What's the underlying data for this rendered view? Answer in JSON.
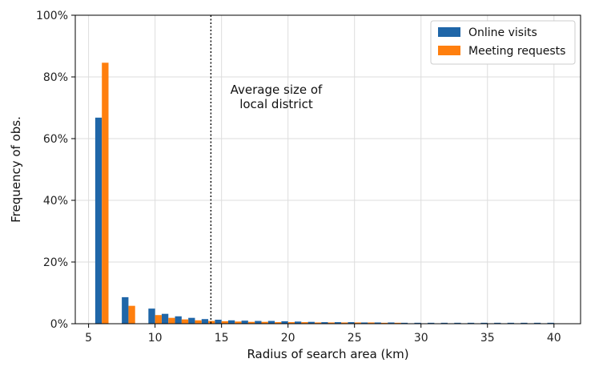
{
  "chart_data": {
    "type": "bar",
    "xlabel": "Radius of search area (km)",
    "ylabel": "Frequency of obs.",
    "xlim": [
      4,
      42
    ],
    "ylim": [
      0,
      100
    ],
    "x_ticks": [
      5,
      10,
      15,
      20,
      25,
      30,
      35,
      40
    ],
    "y_ticks": [
      0,
      20,
      40,
      60,
      80,
      100
    ],
    "y_tick_labels": [
      "0%",
      "20%",
      "40%",
      "60%",
      "80%",
      "100%"
    ],
    "grid": true,
    "legend_position": "top-right",
    "bin_width": 1,
    "series": [
      {
        "name": "Online visits",
        "color": "#1f66a8",
        "x": [
          5,
          6,
          7,
          8,
          9,
          10,
          11,
          12,
          13,
          14,
          15,
          16,
          17,
          18,
          19,
          20,
          21,
          22,
          23,
          24,
          25,
          26,
          27,
          28,
          29,
          30,
          31,
          32,
          33,
          34,
          35,
          36,
          37,
          38,
          39,
          40
        ],
        "values": [
          0,
          66.8,
          0,
          8.6,
          0,
          4.9,
          3.2,
          2.4,
          1.9,
          1.5,
          1.3,
          1.1,
          1.0,
          0.9,
          0.9,
          0.8,
          0.7,
          0.6,
          0.5,
          0.5,
          0.5,
          0.4,
          0.4,
          0.4,
          0.3,
          0.3,
          0.3,
          0.3,
          0.3,
          0.3,
          0.3,
          0.3,
          0.3,
          0.3,
          0.3,
          0.3
        ]
      },
      {
        "name": "Meeting requests",
        "color": "#ff7f0e",
        "x": [
          5,
          6,
          7,
          8,
          9,
          10,
          11,
          12,
          13,
          14,
          15,
          16,
          17,
          18,
          19,
          20,
          21,
          22,
          23,
          24,
          25,
          26,
          27,
          28,
          29,
          30,
          31,
          32,
          33,
          34,
          35,
          36,
          37,
          38,
          39,
          40
        ],
        "values": [
          0,
          84.6,
          0,
          5.8,
          0,
          2.8,
          1.9,
          1.4,
          1.1,
          0.9,
          0.8,
          0.7,
          0.6,
          0.6,
          0.5,
          0.5,
          0.5,
          0.4,
          0.4,
          0.4,
          0.4,
          0.4,
          0.3,
          0.3,
          0,
          0,
          0,
          0,
          0,
          0,
          0,
          0,
          0,
          0,
          0,
          0
        ]
      }
    ],
    "reference_line": {
      "x": 14.2,
      "style": "dotted",
      "label_line1": "Average size of",
      "label_line2": "local district"
    }
  }
}
